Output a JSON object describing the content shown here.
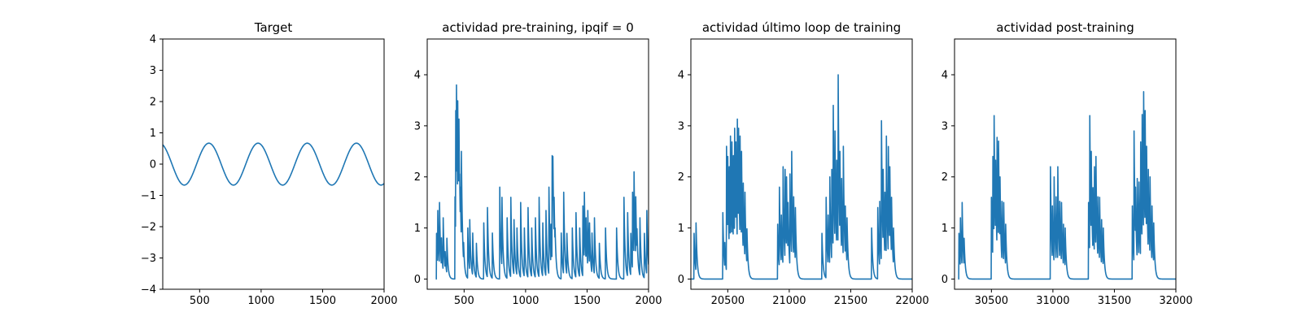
{
  "chart_data": [
    {
      "type": "line",
      "title": "Target",
      "xlim": [
        200,
        2000
      ],
      "ylim": [
        -4,
        4
      ],
      "xticks": [
        500,
        1000,
        1500,
        2000
      ],
      "yticks": [
        -4,
        -3,
        -2,
        -1,
        0,
        1,
        2,
        3,
        4
      ],
      "color": "#1f77b4",
      "series": [
        {
          "kind": "sine",
          "amplitude": 0.67,
          "period": 400,
          "peak_x": 575,
          "x_start": 200,
          "x_end": 2000,
          "step": 5
        }
      ]
    },
    {
      "type": "line",
      "title": "actividad pre-training, ipqif = 0",
      "xlim": [
        200,
        2000
      ],
      "ylim": [
        -0.2,
        4.7
      ],
      "xticks": [
        500,
        1000,
        1500,
        2000
      ],
      "yticks": [
        0,
        1,
        2,
        3,
        4
      ],
      "color": "#1f77b4",
      "series": [
        {
          "kind": "spikes",
          "x_start": 270,
          "x_end": 2000,
          "spikes": [
            [
              275,
              1.0
            ],
            [
              285,
              1.5
            ],
            [
              300,
              1.5
            ],
            [
              315,
              0.9
            ],
            [
              330,
              1.2
            ],
            [
              345,
              0.6
            ],
            [
              360,
              0.8
            ],
            [
              425,
              1.8
            ],
            [
              432,
              3.3
            ],
            [
              438,
              3.8
            ],
            [
              443,
              2.6
            ],
            [
              447,
              3.9
            ],
            [
              452,
              3.0
            ],
            [
              457,
              3.5
            ],
            [
              463,
              2.3
            ],
            [
              470,
              1.8
            ],
            [
              478,
              2.5
            ],
            [
              485,
              1.2
            ],
            [
              495,
              0.8
            ],
            [
              530,
              1.0
            ],
            [
              545,
              1.3
            ],
            [
              570,
              0.9
            ],
            [
              600,
              0.7
            ],
            [
              660,
              1.1
            ],
            [
              690,
              1.4
            ],
            [
              730,
              0.9
            ],
            [
              790,
              1.8
            ],
            [
              808,
              1.6
            ],
            [
              850,
              1.2
            ],
            [
              880,
              1.6
            ],
            [
              905,
              1.3
            ],
            [
              930,
              1.0
            ],
            [
              960,
              1.5
            ],
            [
              990,
              1.0
            ],
            [
              1020,
              1.4
            ],
            [
              1050,
              1.0
            ],
            [
              1080,
              1.2
            ],
            [
              1110,
              1.6
            ],
            [
              1140,
              1.1
            ],
            [
              1165,
              1.5
            ],
            [
              1190,
              1.8
            ],
            [
              1205,
              1.2
            ],
            [
              1215,
              2.7
            ],
            [
              1222,
              2.4
            ],
            [
              1232,
              1.6
            ],
            [
              1240,
              1.0
            ],
            [
              1290,
              0.9
            ],
            [
              1310,
              1.7
            ],
            [
              1335,
              1.0
            ],
            [
              1380,
              1.0
            ],
            [
              1410,
              1.3
            ],
            [
              1440,
              1.0
            ],
            [
              1465,
              1.6
            ],
            [
              1478,
              1.7
            ],
            [
              1492,
              1.2
            ],
            [
              1505,
              1.5
            ],
            [
              1520,
              1.1
            ],
            [
              1540,
              0.9
            ],
            [
              1560,
              1.2
            ],
            [
              1600,
              0.7
            ],
            [
              1650,
              1.0
            ],
            [
              1740,
              1.0
            ],
            [
              1800,
              1.6
            ],
            [
              1830,
              1.3
            ],
            [
              1855,
              1.0
            ],
            [
              1870,
              1.7
            ],
            [
              1882,
              2.1
            ],
            [
              1895,
              1.8
            ],
            [
              1905,
              1.1
            ],
            [
              1930,
              1.2
            ],
            [
              1965,
              1.0
            ],
            [
              1985,
              1.5
            ]
          ]
        }
      ]
    },
    {
      "type": "line",
      "title": "actividad último loop de training",
      "xlim": [
        20200,
        22000
      ],
      "ylim": [
        -0.2,
        4.7
      ],
      "xticks": [
        20500,
        21000,
        21500,
        22000
      ],
      "yticks": [
        0,
        1,
        2,
        3,
        4
      ],
      "color": "#1f77b4",
      "series": [
        {
          "kind": "spikes",
          "x_start": 20200,
          "x_end": 22000,
          "spikes": [
            [
              20225,
              1.0
            ],
            [
              20242,
              1.1
            ],
            [
              20460,
              1.3
            ],
            [
              20475,
              0.8
            ],
            [
              20490,
              2.6
            ],
            [
              20500,
              2.4
            ],
            [
              20512,
              2.2
            ],
            [
              20522,
              2.8
            ],
            [
              20533,
              3.0
            ],
            [
              20545,
              2.7
            ],
            [
              20555,
              3.3
            ],
            [
              20565,
              3.0
            ],
            [
              20577,
              3.5
            ],
            [
              20587,
              3.3
            ],
            [
              20600,
              2.8
            ],
            [
              20612,
              2.5
            ],
            [
              20625,
              2.1
            ],
            [
              20640,
              1.7
            ],
            [
              20655,
              1.1
            ],
            [
              20905,
              1.2
            ],
            [
              20920,
              1.8
            ],
            [
              20935,
              1.4
            ],
            [
              20950,
              2.2
            ],
            [
              20965,
              2.4
            ],
            [
              20978,
              2.0
            ],
            [
              20990,
              1.5
            ],
            [
              21005,
              2.3
            ],
            [
              21020,
              2.5
            ],
            [
              21035,
              1.8
            ],
            [
              21050,
              1.4
            ],
            [
              21265,
              1.0
            ],
            [
              21300,
              1.6
            ],
            [
              21315,
              1.4
            ],
            [
              21330,
              2.0
            ],
            [
              21345,
              2.4
            ],
            [
              21358,
              3.4
            ],
            [
              21372,
              2.9
            ],
            [
              21385,
              2.6
            ],
            [
              21398,
              4.0
            ],
            [
              21412,
              2.5
            ],
            [
              21425,
              2.2
            ],
            [
              21440,
              2.6
            ],
            [
              21455,
              1.6
            ],
            [
              21470,
              1.2
            ],
            [
              21670,
              1.0
            ],
            [
              21720,
              1.4
            ],
            [
              21735,
              1.7
            ],
            [
              21750,
              3.1
            ],
            [
              21763,
              2.4
            ],
            [
              21777,
              1.9
            ],
            [
              21790,
              2.8
            ],
            [
              21805,
              2.9
            ],
            [
              21818,
              2.2
            ],
            [
              21832,
              1.6
            ],
            [
              21848,
              1.0
            ]
          ]
        }
      ]
    },
    {
      "type": "line",
      "title": "actividad post-training",
      "xlim": [
        30200,
        32000
      ],
      "ylim": [
        -0.2,
        4.7
      ],
      "xticks": [
        30500,
        31000,
        31500,
        32000
      ],
      "yticks": [
        0,
        1,
        2,
        3,
        4
      ],
      "color": "#1f77b4",
      "series": [
        {
          "kind": "spikes",
          "x_start": 30230,
          "x_end": 32000,
          "spikes": [
            [
              30235,
              1.0
            ],
            [
              30248,
              1.2
            ],
            [
              30262,
              1.5
            ],
            [
              30278,
              0.8
            ],
            [
              30500,
              1.6
            ],
            [
              30512,
              2.4
            ],
            [
              30522,
              3.2
            ],
            [
              30533,
              2.6
            ],
            [
              30545,
              3.1
            ],
            [
              30558,
              2.7
            ],
            [
              30570,
              2.0
            ],
            [
              30585,
              1.7
            ],
            [
              30600,
              1.5
            ],
            [
              30615,
              1.2
            ],
            [
              30980,
              2.2
            ],
            [
              30995,
              1.6
            ],
            [
              31010,
              2.0
            ],
            [
              31025,
              1.8
            ],
            [
              31040,
              2.2
            ],
            [
              31055,
              1.7
            ],
            [
              31070,
              1.5
            ],
            [
              31085,
              1.2
            ],
            [
              31100,
              1.0
            ],
            [
              31290,
              1.5
            ],
            [
              31300,
              3.2
            ],
            [
              31312,
              2.5
            ],
            [
              31325,
              2.0
            ],
            [
              31338,
              2.2
            ],
            [
              31350,
              2.4
            ],
            [
              31365,
              1.8
            ],
            [
              31380,
              1.6
            ],
            [
              31395,
              1.3
            ],
            [
              31410,
              1.0
            ],
            [
              31645,
              1.6
            ],
            [
              31660,
              2.9
            ],
            [
              31672,
              1.8
            ],
            [
              31685,
              2.2
            ],
            [
              31700,
              1.9
            ],
            [
              31713,
              3.0
            ],
            [
              31725,
              3.6
            ],
            [
              31737,
              4.1
            ],
            [
              31750,
              3.3
            ],
            [
              31762,
              2.6
            ],
            [
              31775,
              2.4
            ],
            [
              31790,
              2.0
            ],
            [
              31805,
              1.6
            ],
            [
              31820,
              1.1
            ]
          ]
        }
      ]
    }
  ]
}
